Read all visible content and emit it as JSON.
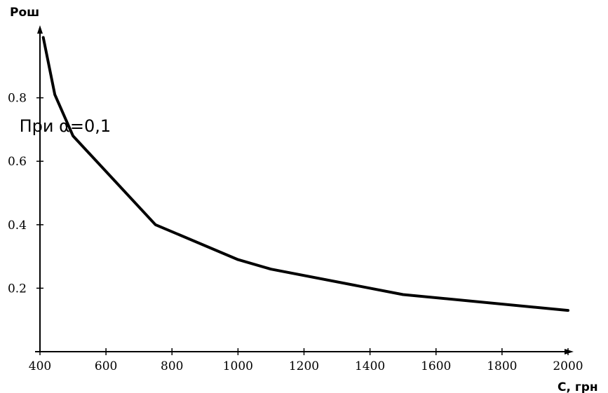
{
  "chart_data": {
    "type": "line",
    "title": "",
    "xlabel": "С, грн",
    "ylabel": "Рош",
    "xlim": [
      400,
      2000
    ],
    "ylim": [
      0,
      1.0
    ],
    "x_ticks": [
      400,
      600,
      800,
      1000,
      1200,
      1400,
      1600,
      1800,
      2000
    ],
    "y_ticks": [
      0.2,
      0.4,
      0.6,
      0.8
    ],
    "x_tick_labels": [
      "400",
      "600",
      "800",
      "1000",
      "1200",
      "1400",
      "1600",
      "1800",
      "2000"
    ],
    "y_tick_labels": [
      "0.2",
      "0.4",
      "0.6",
      "0.8"
    ],
    "grid": false,
    "series": [
      {
        "x": [
          410,
          445,
          500,
          750,
          1000,
          1100,
          1500,
          2000
        ],
        "y": [
          0.99,
          0.81,
          0.68,
          0.4,
          0.29,
          0.26,
          0.18,
          0.13
        ]
      }
    ],
    "annotations": [
      {
        "text": "При α=0,1",
        "x": 720,
        "y": 0.68
      }
    ],
    "colors": {
      "line": "#000000",
      "axis": "#000000"
    }
  }
}
